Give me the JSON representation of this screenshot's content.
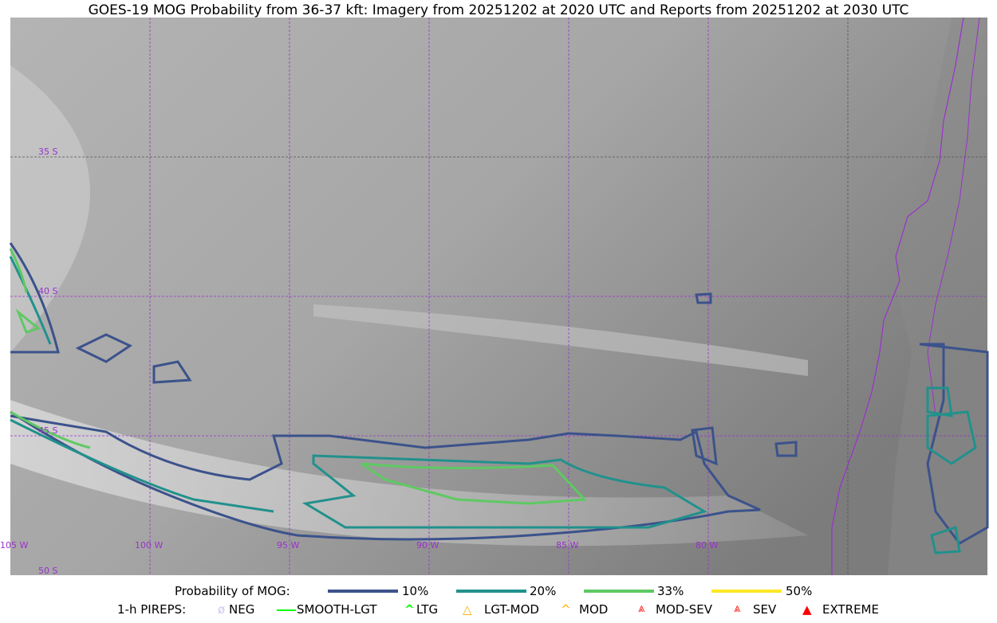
{
  "title": "GOES-19 MOG Probability from 36-37 kft: Imagery from 20251202 at 2020 UTC and Reports from 20251202 at 2030 UTC",
  "map": {
    "lat_labels": [
      "35 S",
      "40 S",
      "45 S",
      "50 S"
    ],
    "lon_labels": [
      "105 W",
      "100 W",
      "95 W",
      "90 W",
      "85 W",
      "80 W"
    ],
    "gridline_color": "#9932cc",
    "coastline_color": "#9932cc"
  },
  "legend": {
    "probability_label": "Probability of MOG:",
    "levels": [
      {
        "label": "10%",
        "color": "#3b528b"
      },
      {
        "label": "20%",
        "color": "#21918c"
      },
      {
        "label": "33%",
        "color": "#5ec962"
      },
      {
        "label": "50%",
        "color": "#fde725"
      }
    ],
    "pirep_label": "1-h PIREPS:",
    "pireps": [
      {
        "label": "NEG",
        "color": "#c8c8f0",
        "icon": "neg-icon"
      },
      {
        "label": "SMOOTH-LGT",
        "color": "#00ff00",
        "icon": "line-icon"
      },
      {
        "label": "LTG",
        "color": "#00ff00",
        "icon": "caret-icon"
      },
      {
        "label": "LGT-MOD",
        "color": "#ffb000",
        "icon": "triangle-open-icon"
      },
      {
        "label": "MOD",
        "color": "#ffb000",
        "icon": "caret-icon"
      },
      {
        "label": "MOD-SEV",
        "color": "#ff2020",
        "icon": "double-caret-icon"
      },
      {
        "label": "SEV",
        "color": "#ff2020",
        "icon": "double-caret-icon"
      },
      {
        "label": "EXTREME",
        "color": "#ff0000",
        "icon": "filled-triangle-icon"
      }
    ]
  }
}
